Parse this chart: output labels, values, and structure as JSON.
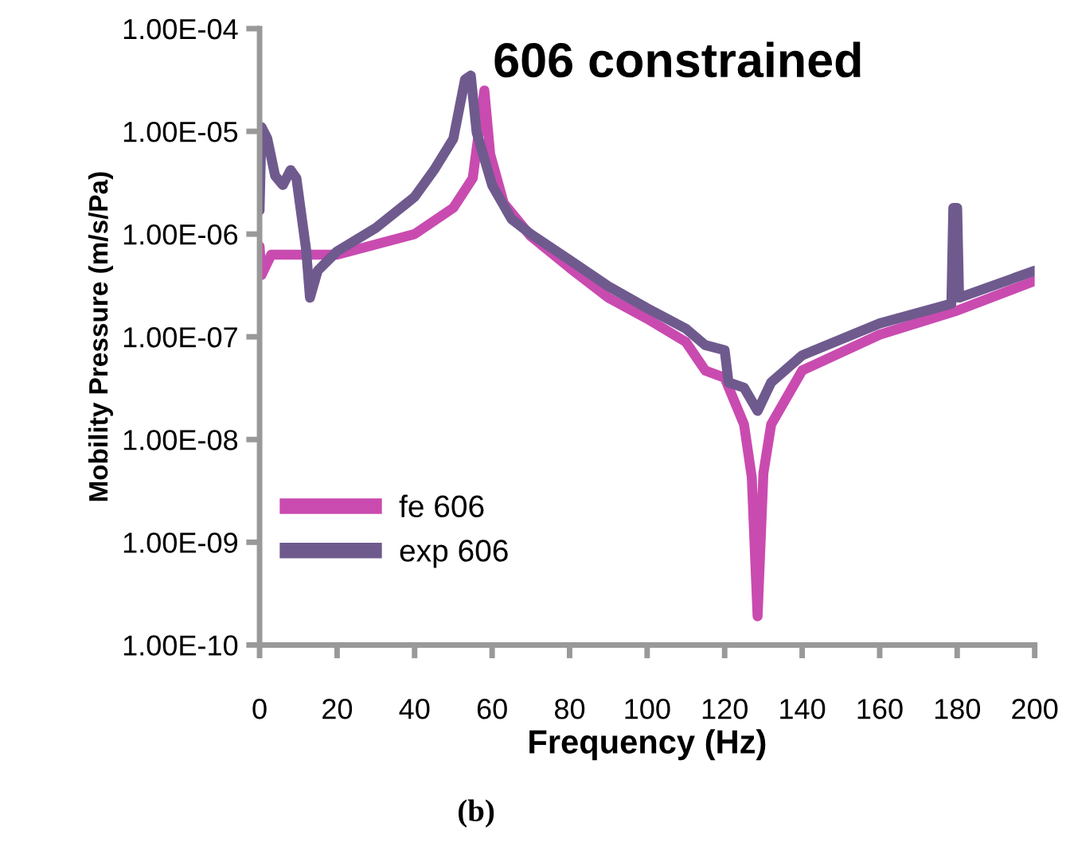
{
  "chart_data": {
    "type": "line",
    "title": "606 constrained",
    "xlabel": "Frequency (Hz)",
    "ylabel": "Mobility Pressure (m/s/Pa)",
    "annotations": [
      "(b)"
    ],
    "log": "y",
    "xlim": [
      0,
      200
    ],
    "xticks": [
      0,
      20,
      40,
      60,
      80,
      100,
      120,
      140,
      160,
      180,
      200
    ],
    "ylim": [
      1e-10,
      0.0001
    ],
    "yticks": [
      {
        "value": 1e-10,
        "label": "1.00E-10"
      },
      {
        "value": 1e-09,
        "label": "1.00E-09"
      },
      {
        "value": 1e-08,
        "label": "1.00E-08"
      },
      {
        "value": 1e-07,
        "label": "1.00E-07"
      },
      {
        "value": 1e-06,
        "label": "1.00E-06"
      },
      {
        "value": 1e-05,
        "label": "1.00E-05"
      },
      {
        "value": 0.0001,
        "label": "1.00E-04"
      }
    ],
    "grid": false,
    "legend": "bottom left",
    "marker": "none",
    "line_style": "solid",
    "series": [
      {
        "name": "fe 606",
        "color": "#c94bb0",
        "x": [
          0,
          0.5,
          3,
          20,
          40,
          50,
          55,
          58,
          59.5,
          63,
          70,
          80,
          90,
          100,
          110,
          115,
          120,
          125,
          127,
          128.5,
          130,
          132,
          140,
          160,
          180,
          200
        ],
        "values": [
          7.6e-07,
          4e-07,
          6.3e-07,
          6.3e-07,
          1e-06,
          1.8e-06,
          3.5e-06,
          2.5e-05,
          6e-06,
          2e-06,
          9.5e-07,
          4.7e-07,
          2.4e-07,
          1.5e-07,
          8.9e-08,
          4.7e-08,
          4e-08,
          1.4e-08,
          4.3e-09,
          1.9e-10,
          4.7e-09,
          1.4e-08,
          4.7e-08,
          1.05e-07,
          1.8e-07,
          3.5e-07
        ]
      },
      {
        "name": "exp 606",
        "color": "#6f5a8e",
        "x": [
          0,
          0.5,
          2,
          4,
          6,
          8,
          9.5,
          12,
          13,
          15,
          20,
          30,
          40,
          45,
          50,
          53,
          54.5,
          56,
          58,
          60,
          65,
          70,
          80,
          90,
          100,
          110,
          115,
          120,
          121,
          125,
          128.5,
          132,
          140,
          160,
          178.5,
          179,
          180,
          180.5,
          200
        ],
        "values": [
          1.7e-06,
          1.1e-05,
          8.5e-06,
          3.7e-06,
          3e-06,
          4.2e-06,
          3.5e-06,
          7.1e-07,
          2.4e-07,
          4.4e-07,
          6.8e-07,
          1.15e-06,
          2.3e-06,
          4.2e-06,
          8.5e-06,
          3.2e-05,
          3.5e-05,
          9.8e-06,
          5.4e-06,
          3e-06,
          1.4e-06,
          1e-06,
          5.6e-07,
          3.1e-07,
          1.9e-07,
          1.2e-07,
          8.3e-08,
          7.4e-08,
          3.6e-08,
          3.2e-08,
          1.9e-08,
          3.6e-08,
          6.6e-08,
          1.35e-07,
          2.1e-07,
          1.8e-06,
          1.8e-06,
          2.4e-07,
          4.4e-07
        ]
      }
    ]
  }
}
